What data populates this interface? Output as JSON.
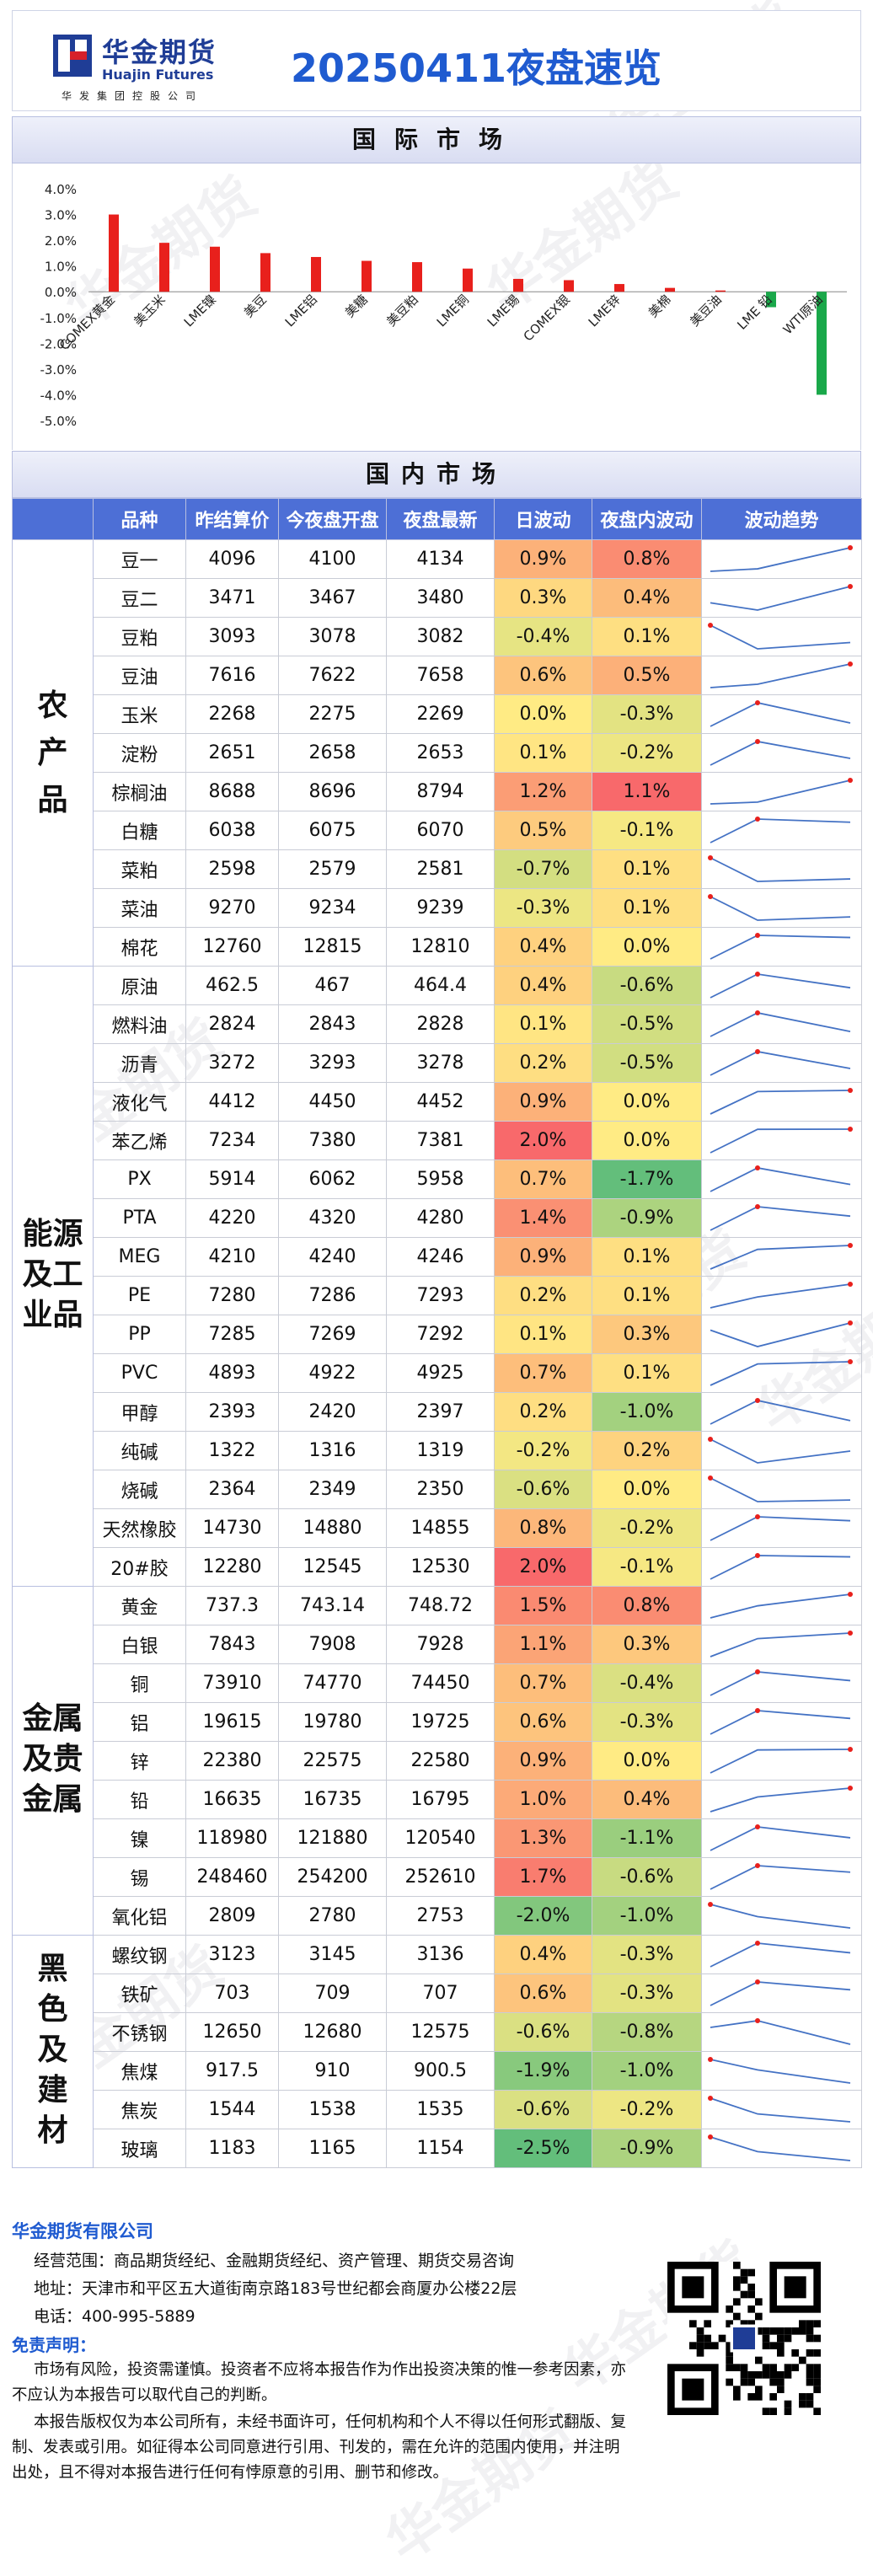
{
  "header": {
    "company_cn": "华金期货",
    "company_en": "Huajin Futures",
    "company_sub": "华发集团控股公司",
    "title": "20250411夜盘速览"
  },
  "watermark": "华金期货",
  "intl": {
    "section_title": "国际市场",
    "chart_data": {
      "type": "bar",
      "categories": [
        "COMEX黄金",
        "美玉米",
        "LME镍",
        "美豆",
        "LME铝",
        "美糖",
        "美豆粕",
        "LME铜",
        "LME锡",
        "COMEX银",
        "LME锌",
        "美棉",
        "美豆油",
        "LME 铅",
        "WTI原油"
      ],
      "values": [
        3.0,
        1.9,
        1.75,
        1.5,
        1.35,
        1.2,
        1.15,
        0.9,
        0.5,
        0.45,
        0.3,
        0.15,
        0.05,
        -0.6,
        -4.0
      ],
      "ylim": [
        -5.0,
        4.0
      ],
      "yticks": [
        4.0,
        3.0,
        2.0,
        1.0,
        0.0,
        -1.0,
        -2.0,
        -3.0,
        -4.0,
        -5.0
      ],
      "ytick_labels": [
        "4.0%",
        "3.0%",
        "2.0%",
        "1.0%",
        "0.0%",
        "-1.0%",
        "-2.0%",
        "-3.0%",
        "-4.0%",
        "-5.0%"
      ],
      "colors": {
        "positive": "#e8201c",
        "negative": "#1aa84a"
      },
      "grid": false
    }
  },
  "domestic": {
    "section_title": "国内市场",
    "columns": [
      "品种",
      "昨结算价",
      "今夜盘开盘",
      "夜盘最新",
      "日波动",
      "夜盘内波动",
      "波动趋势"
    ],
    "groups": [
      {
        "name": "农产品",
        "rows": [
          {
            "name": "豆一",
            "prev": "4096",
            "open": "4100",
            "last": "4134",
            "day": "0.9%",
            "night": "0.8%"
          },
          {
            "name": "豆二",
            "prev": "3471",
            "open": "3467",
            "last": "3480",
            "day": "0.3%",
            "night": "0.4%"
          },
          {
            "name": "豆粕",
            "prev": "3093",
            "open": "3078",
            "last": "3082",
            "day": "-0.4%",
            "night": "0.1%"
          },
          {
            "name": "豆油",
            "prev": "7616",
            "open": "7622",
            "last": "7658",
            "day": "0.6%",
            "night": "0.5%"
          },
          {
            "name": "玉米",
            "prev": "2268",
            "open": "2275",
            "last": "2269",
            "day": "0.0%",
            "night": "-0.3%"
          },
          {
            "name": "淀粉",
            "prev": "2651",
            "open": "2658",
            "last": "2653",
            "day": "0.1%",
            "night": "-0.2%"
          },
          {
            "name": "棕榈油",
            "prev": "8688",
            "open": "8696",
            "last": "8794",
            "day": "1.2%",
            "night": "1.1%"
          },
          {
            "name": "白糖",
            "prev": "6038",
            "open": "6075",
            "last": "6070",
            "day": "0.5%",
            "night": "-0.1%"
          },
          {
            "name": "菜粕",
            "prev": "2598",
            "open": "2579",
            "last": "2581",
            "day": "-0.7%",
            "night": "0.1%"
          },
          {
            "name": "菜油",
            "prev": "9270",
            "open": "9234",
            "last": "9239",
            "day": "-0.3%",
            "night": "0.1%"
          },
          {
            "name": "棉花",
            "prev": "12760",
            "open": "12815",
            "last": "12810",
            "day": "0.4%",
            "night": "0.0%"
          }
        ]
      },
      {
        "name": "能源及工业品",
        "rows": [
          {
            "name": "原油",
            "prev": "462.5",
            "open": "467",
            "last": "464.4",
            "day": "0.4%",
            "night": "-0.6%"
          },
          {
            "name": "燃料油",
            "prev": "2824",
            "open": "2843",
            "last": "2828",
            "day": "0.1%",
            "night": "-0.5%"
          },
          {
            "name": "沥青",
            "prev": "3272",
            "open": "3293",
            "last": "3278",
            "day": "0.2%",
            "night": "-0.5%"
          },
          {
            "name": "液化气",
            "prev": "4412",
            "open": "4450",
            "last": "4452",
            "day": "0.9%",
            "night": "0.0%"
          },
          {
            "name": "苯乙烯",
            "prev": "7234",
            "open": "7380",
            "last": "7381",
            "day": "2.0%",
            "night": "0.0%"
          },
          {
            "name": "PX",
            "prev": "5914",
            "open": "6062",
            "last": "5958",
            "day": "0.7%",
            "night": "-1.7%"
          },
          {
            "name": "PTA",
            "prev": "4220",
            "open": "4320",
            "last": "4280",
            "day": "1.4%",
            "night": "-0.9%"
          },
          {
            "name": "MEG",
            "prev": "4210",
            "open": "4240",
            "last": "4246",
            "day": "0.9%",
            "night": "0.1%"
          },
          {
            "name": "PE",
            "prev": "7280",
            "open": "7286",
            "last": "7293",
            "day": "0.2%",
            "night": "0.1%"
          },
          {
            "name": "PP",
            "prev": "7285",
            "open": "7269",
            "last": "7292",
            "day": "0.1%",
            "night": "0.3%"
          },
          {
            "name": "PVC",
            "prev": "4893",
            "open": "4922",
            "last": "4925",
            "day": "0.7%",
            "night": "0.1%"
          },
          {
            "name": "甲醇",
            "prev": "2393",
            "open": "2420",
            "last": "2397",
            "day": "0.2%",
            "night": "-1.0%"
          },
          {
            "name": "纯碱",
            "prev": "1322",
            "open": "1316",
            "last": "1319",
            "day": "-0.2%",
            "night": "0.2%"
          },
          {
            "name": "烧碱",
            "prev": "2364",
            "open": "2349",
            "last": "2350",
            "day": "-0.6%",
            "night": "0.0%"
          },
          {
            "name": "天然橡胶",
            "prev": "14730",
            "open": "14880",
            "last": "14855",
            "day": "0.8%",
            "night": "-0.2%"
          },
          {
            "name": "20#胶",
            "prev": "12280",
            "open": "12545",
            "last": "12530",
            "day": "2.0%",
            "night": "-0.1%"
          }
        ]
      },
      {
        "name": "金属及贵金属",
        "rows": [
          {
            "name": "黄金",
            "prev": "737.3",
            "open": "743.14",
            "last": "748.72",
            "day": "1.5%",
            "night": "0.8%"
          },
          {
            "name": "白银",
            "prev": "7843",
            "open": "7908",
            "last": "7928",
            "day": "1.1%",
            "night": "0.3%"
          },
          {
            "name": "铜",
            "prev": "73910",
            "open": "74770",
            "last": "74450",
            "day": "0.7%",
            "night": "-0.4%"
          },
          {
            "name": "铝",
            "prev": "19615",
            "open": "19780",
            "last": "19725",
            "day": "0.6%",
            "night": "-0.3%"
          },
          {
            "name": "锌",
            "prev": "22380",
            "open": "22575",
            "last": "22580",
            "day": "0.9%",
            "night": "0.0%"
          },
          {
            "name": "铅",
            "prev": "16635",
            "open": "16735",
            "last": "16795",
            "day": "1.0%",
            "night": "0.4%"
          },
          {
            "name": "镍",
            "prev": "118980",
            "open": "121880",
            "last": "120540",
            "day": "1.3%",
            "night": "-1.1%"
          },
          {
            "name": "锡",
            "prev": "248460",
            "open": "254200",
            "last": "252610",
            "day": "1.7%",
            "night": "-0.6%"
          },
          {
            "name": "氧化铝",
            "prev": "2809",
            "open": "2780",
            "last": "2753",
            "day": "-2.0%",
            "night": "-1.0%"
          }
        ]
      },
      {
        "name": "黑色及建材",
        "rows": [
          {
            "name": "螺纹钢",
            "prev": "3123",
            "open": "3145",
            "last": "3136",
            "day": "0.4%",
            "night": "-0.3%"
          },
          {
            "name": "铁矿",
            "prev": "703",
            "open": "709",
            "last": "707",
            "day": "0.6%",
            "night": "-0.3%"
          },
          {
            "name": "不锈钢",
            "prev": "12650",
            "open": "12680",
            "last": "12575",
            "day": "-0.6%",
            "night": "-0.8%"
          },
          {
            "name": "焦煤",
            "prev": "917.5",
            "open": "910",
            "last": "900.5",
            "day": "-1.9%",
            "night": "-1.0%"
          },
          {
            "name": "焦炭",
            "prev": "1544",
            "open": "1538",
            "last": "1535",
            "day": "-0.6%",
            "night": "-0.2%"
          },
          {
            "name": "玻璃",
            "prev": "1183",
            "open": "1165",
            "last": "1154",
            "day": "-2.5%",
            "night": "-0.9%"
          }
        ]
      }
    ]
  },
  "footer": {
    "company": "华金期货有限公司",
    "scope": "经营范围：商品期货经纪、金融期货经纪、资产管理、期货交易咨询",
    "address": "地址：天津市和平区五大道街南京路183号世纪都会商厦办公楼22层",
    "phone": "电话：400-995-5889",
    "disclaimer_title": "免责声明：",
    "disclaimer_1": "市场有风险，投资需谨慎。投资者不应将本报告作为作出投资决策的惟一参考因素，亦不应认为本报告可以取代自己的判断。",
    "disclaimer_2": "本报告版权仅为本公司所有，未经书面许可，任何机构和个人不得以任何形式翻版、复制、发表或引用。如征得本公司同意进行引用、刊发的，需在允许的范围内使用，并注明出处，且不得对本报告进行任何有悖原意的引用、删节和修改。"
  }
}
